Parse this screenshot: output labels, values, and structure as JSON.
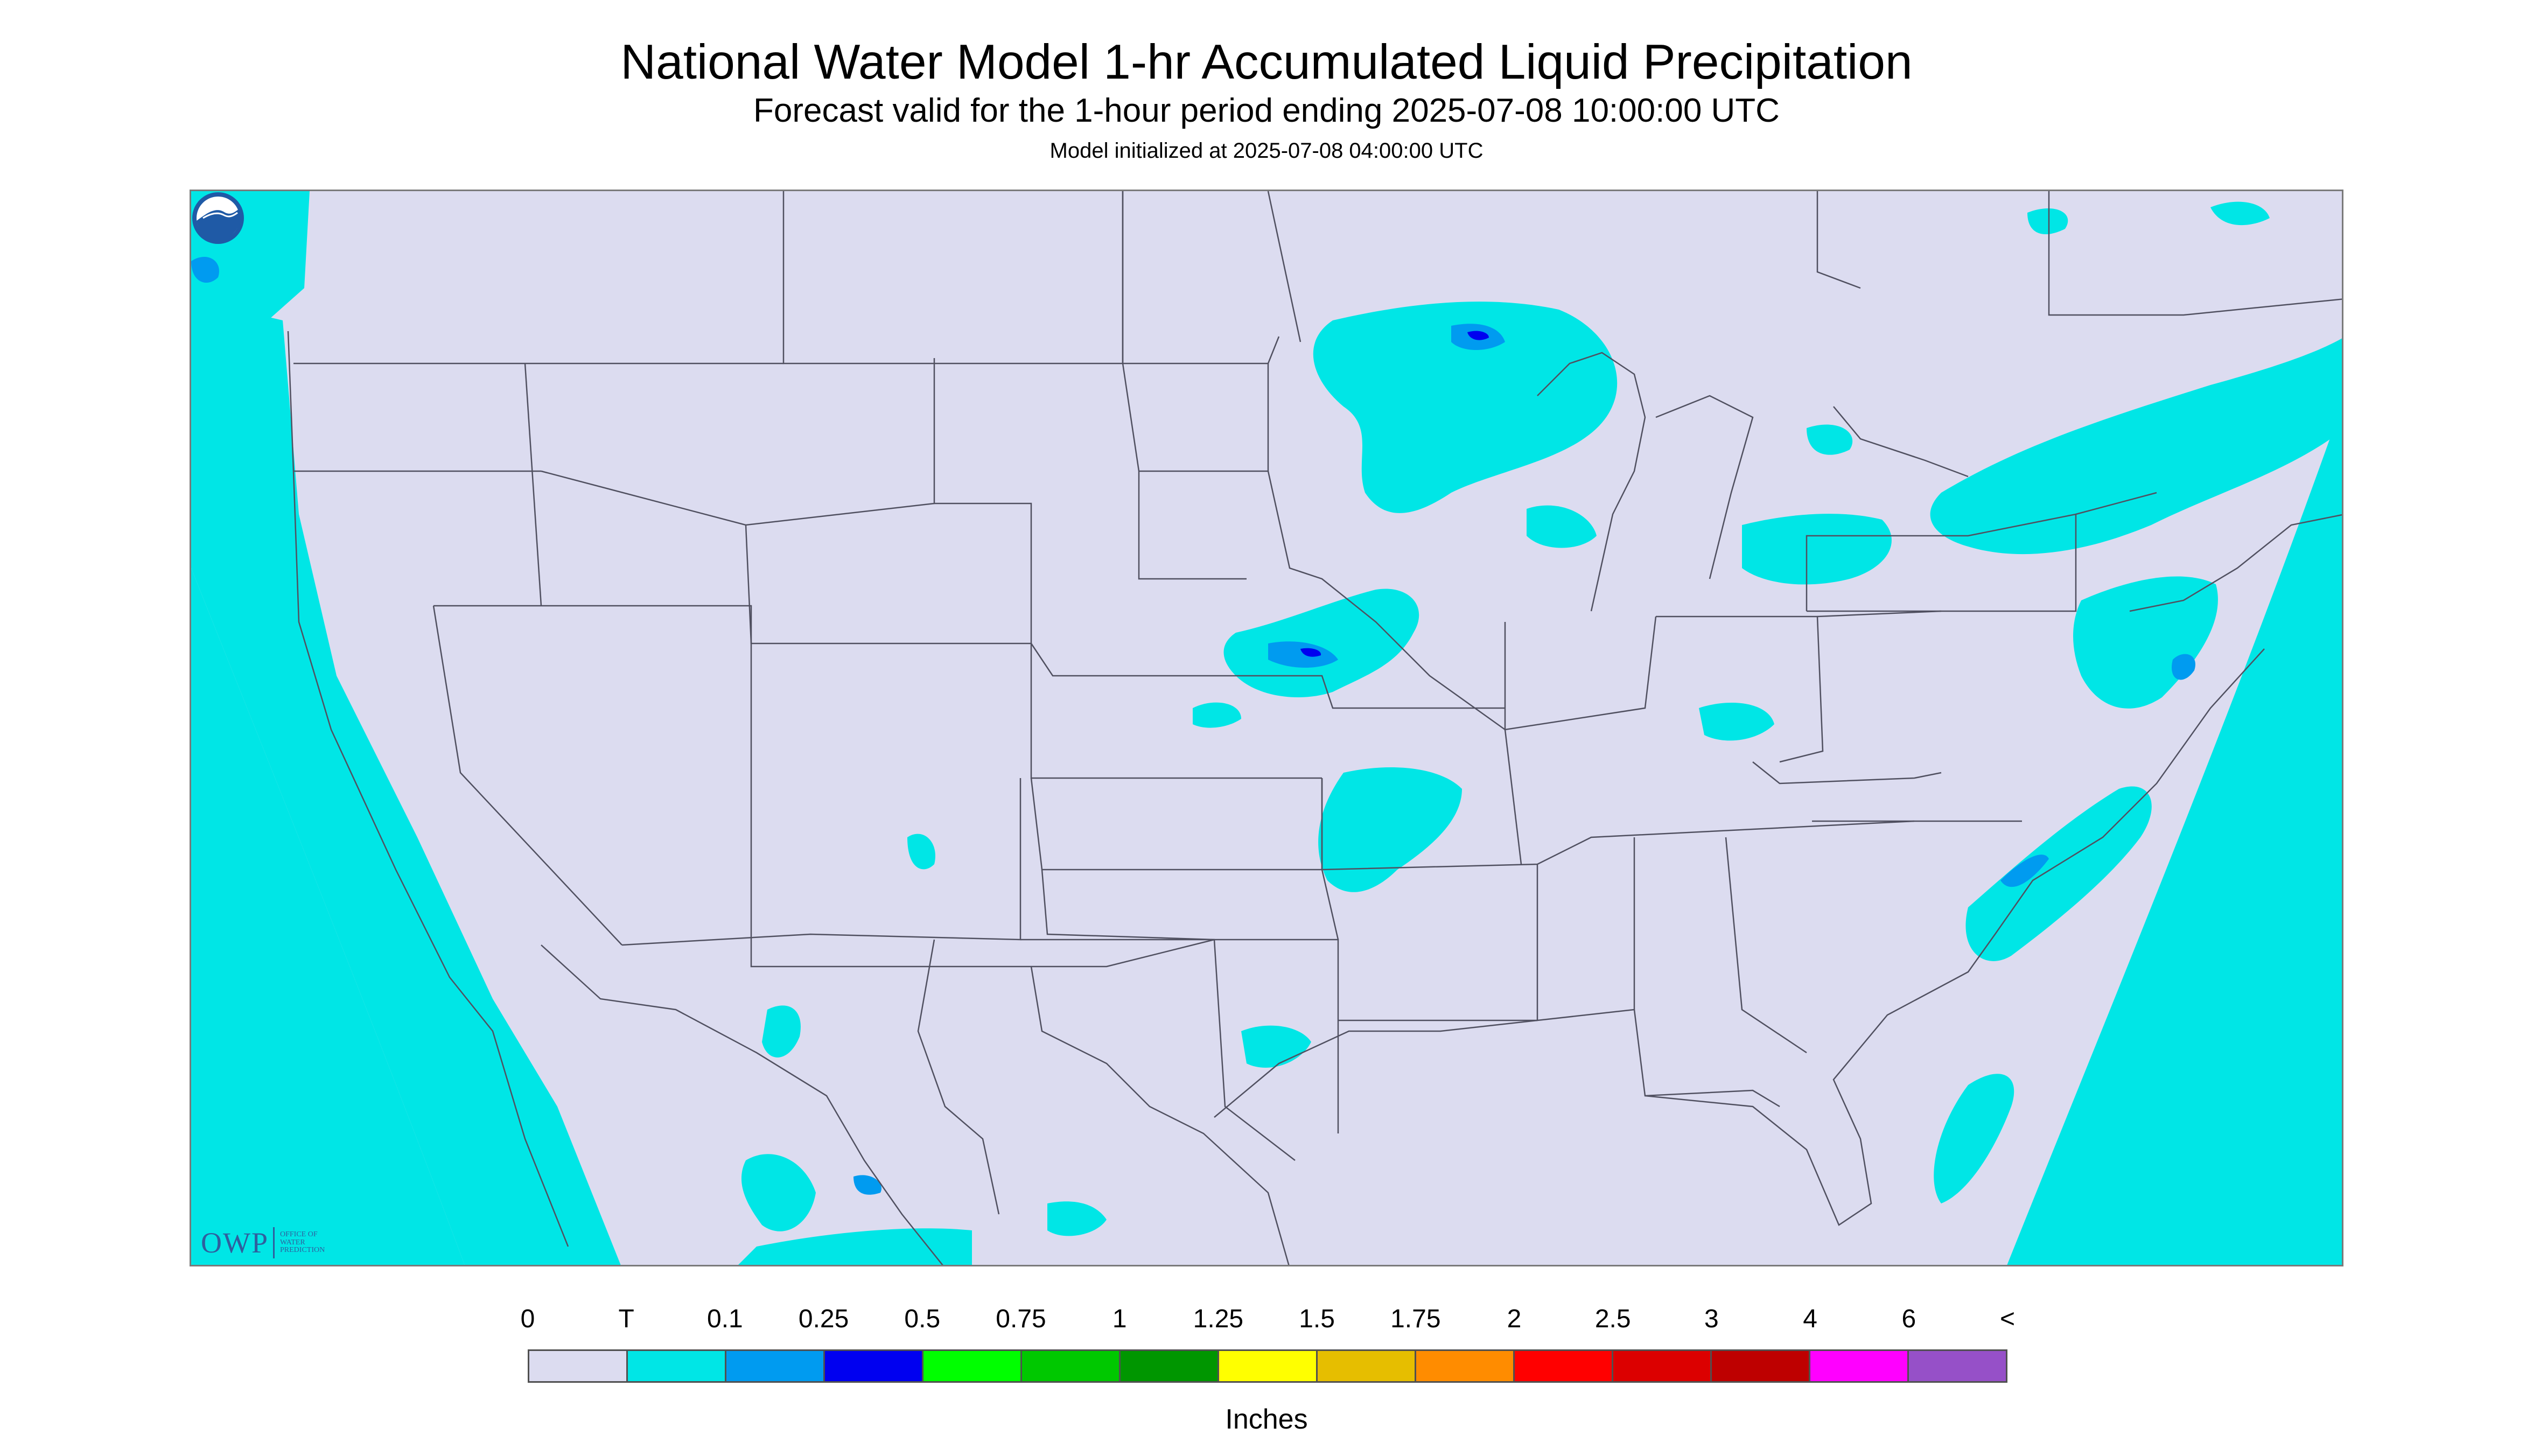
{
  "title": "National Water Model 1-hr Accumulated Liquid Precipitation",
  "subtitle": "Forecast valid for the 1-hour period ending 2025-07-08 10:00:00 UTC",
  "init_line": "Model initialized at 2025-07-08 04:00:00 UTC",
  "logos": {
    "owp_mark": "OWP",
    "owp_text": "OFFICE OF\nWATER\nPREDICTION",
    "noaa_icon": "noaa-seal-icon"
  },
  "legend": {
    "units": "Inches",
    "ticks": [
      "0",
      "T",
      "0.1",
      "0.25",
      "0.5",
      "0.75",
      "1",
      "1.25",
      "1.5",
      "1.75",
      "2",
      "2.5",
      "3",
      "4",
      "6",
      "<"
    ],
    "colors": [
      "#dcdcf0",
      "#00e6e6",
      "#009bf0",
      "#0000f0",
      "#00ff00",
      "#00c800",
      "#009600",
      "#ffff00",
      "#e6be00",
      "#ff8c00",
      "#ff0000",
      "#dc0000",
      "#be0000",
      "#ff00ff",
      "#9650c8"
    ]
  },
  "map": {
    "background_color": "#dcdcf0",
    "outside_domain_color": "#00e6e6",
    "border_color": "#505060"
  }
}
